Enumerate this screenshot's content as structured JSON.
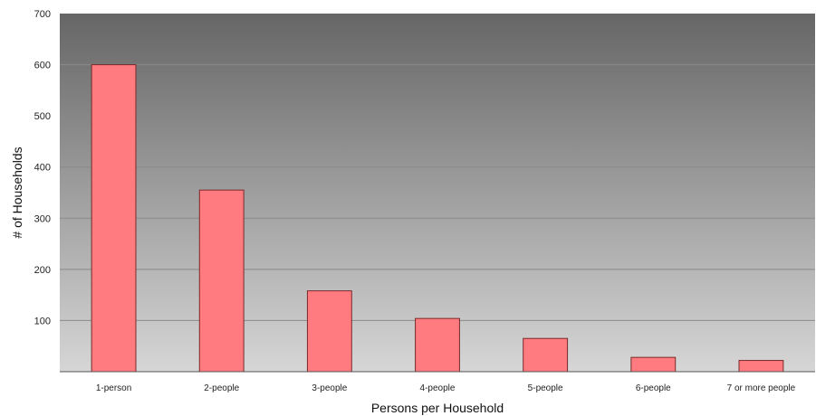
{
  "chart_data": {
    "type": "bar",
    "categories": [
      "1-person",
      "2-people",
      "3-people",
      "4-people",
      "5-people",
      "6-people",
      "7 or more people"
    ],
    "values": [
      600,
      355,
      158,
      104,
      65,
      28,
      22
    ],
    "title": "",
    "xlabel": "Persons per Household",
    "ylabel": "# of Households",
    "ylim": [
      0,
      700
    ],
    "yticks": [
      100,
      200,
      300,
      400,
      500,
      600,
      700
    ],
    "grid": true,
    "bar_color": "#ff7b80",
    "bar_edge_color": "#7a2a2a",
    "plot_bg_top": "#666666",
    "plot_bg_bottom": "#d6d6d6"
  }
}
